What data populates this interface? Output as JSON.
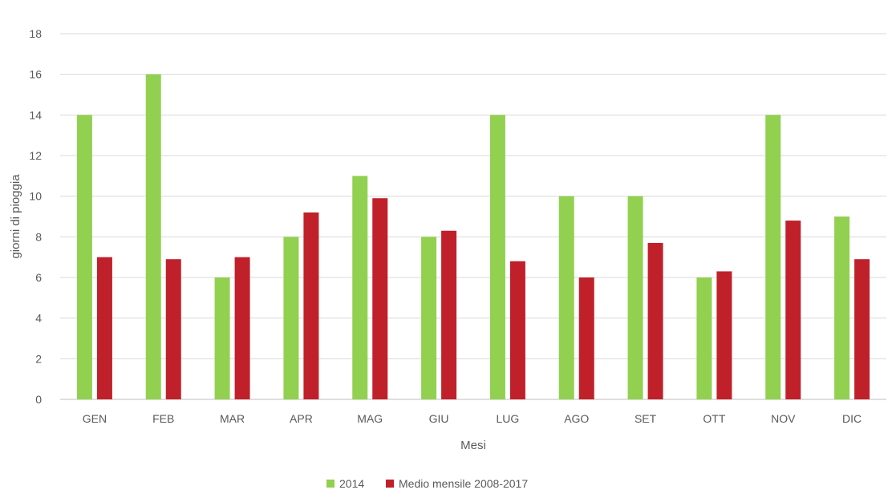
{
  "chart_data": {
    "type": "bar",
    "title": "",
    "xlabel": "Mesi",
    "ylabel": "giorni di pioggia",
    "ylim": [
      0,
      18
    ],
    "ytick_step": 2,
    "grid": true,
    "legend_position": "bottom",
    "categories": [
      "GEN",
      "FEB",
      "MAR",
      "APR",
      "MAG",
      "GIU",
      "LUG",
      "AGO",
      "SET",
      "OTT",
      "NOV",
      "DIC"
    ],
    "series": [
      {
        "name": "2014",
        "color": "#92d050",
        "values": [
          14,
          16,
          6,
          8,
          11,
          8,
          14,
          10,
          10,
          6,
          14,
          9
        ]
      },
      {
        "name": "Medio mensile 2008-2017",
        "color": "#c0202a",
        "values": [
          7,
          6.9,
          7,
          9.2,
          9.9,
          8.3,
          6.8,
          6,
          7.7,
          6.3,
          8.8,
          6.9
        ]
      }
    ]
  }
}
